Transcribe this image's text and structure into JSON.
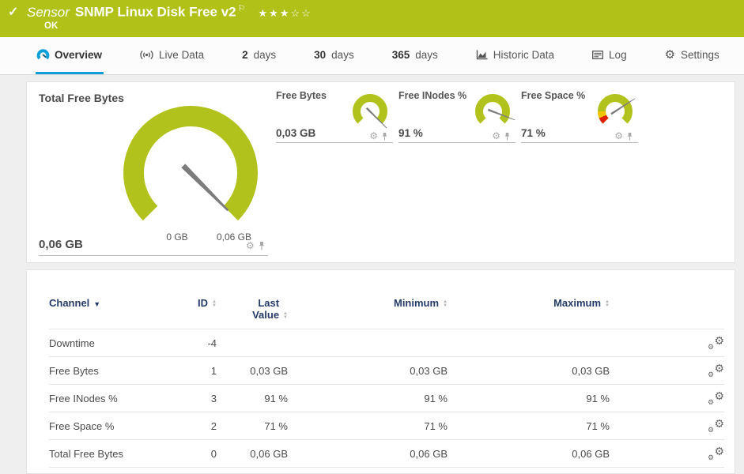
{
  "colors": {
    "brand_green": "#b1c118",
    "gauge": "#b2c21c",
    "danger": "#dd2000",
    "warning": "#f2c500",
    "accent_blue": "#0f9fd8",
    "header_navy": "#253b67",
    "needle_gray": "#7c7c7c"
  },
  "icons": {
    "check": "✓",
    "flag": "⚐",
    "gear": "⚙",
    "sort_up": "▲",
    "sort_down": "▼",
    "sort_active": "▼"
  },
  "header": {
    "type_label": "Sensor",
    "title": "SNMP Linux Disk Free v2",
    "status": "OK",
    "stars_filled": "★★★",
    "stars_empty": "☆☆"
  },
  "tabs": {
    "overview": {
      "label": "Overview",
      "active": true
    },
    "livedata": {
      "label": "Live Data"
    },
    "d2": {
      "num": "2",
      "label": "days"
    },
    "d30": {
      "num": "30",
      "label": "days"
    },
    "d365": {
      "num": "365",
      "label": "days"
    },
    "historic": {
      "label": "Historic Data"
    },
    "log": {
      "label": "Log"
    },
    "settings": {
      "label": "Settings"
    }
  },
  "gauges": {
    "main": {
      "title": "Total Free Bytes",
      "value": "0,06 GB",
      "scale_min": "0 GB",
      "scale_max": "0,06 GB",
      "needle_deg": 135
    },
    "small": [
      {
        "title": "Free Bytes",
        "value": "0,03 GB",
        "needle_deg": 135
      },
      {
        "title": "Free INodes %",
        "value": "91 %",
        "needle_deg": 111
      },
      {
        "title": "Free Space %",
        "value": "71 %",
        "needle_deg": 57
      }
    ]
  },
  "table": {
    "columns": {
      "channel": "Channel",
      "id": "ID",
      "last": "Last Value",
      "min": "Minimum",
      "max": "Maximum"
    },
    "rows": [
      {
        "channel": "Downtime",
        "id": "-4",
        "last": "",
        "min": "",
        "max": ""
      },
      {
        "channel": "Free Bytes",
        "id": "1",
        "last": "0,03 GB",
        "min": "0,03 GB",
        "max": "0,03 GB"
      },
      {
        "channel": "Free INodes %",
        "id": "3",
        "last": "91 %",
        "min": "91 %",
        "max": "91 %"
      },
      {
        "channel": "Free Space %",
        "id": "2",
        "last": "71 %",
        "min": "71 %",
        "max": "71 %"
      },
      {
        "channel": "Total Free Bytes",
        "id": "0",
        "last": "0,06 GB",
        "min": "0,06 GB",
        "max": "0,06 GB"
      }
    ]
  }
}
